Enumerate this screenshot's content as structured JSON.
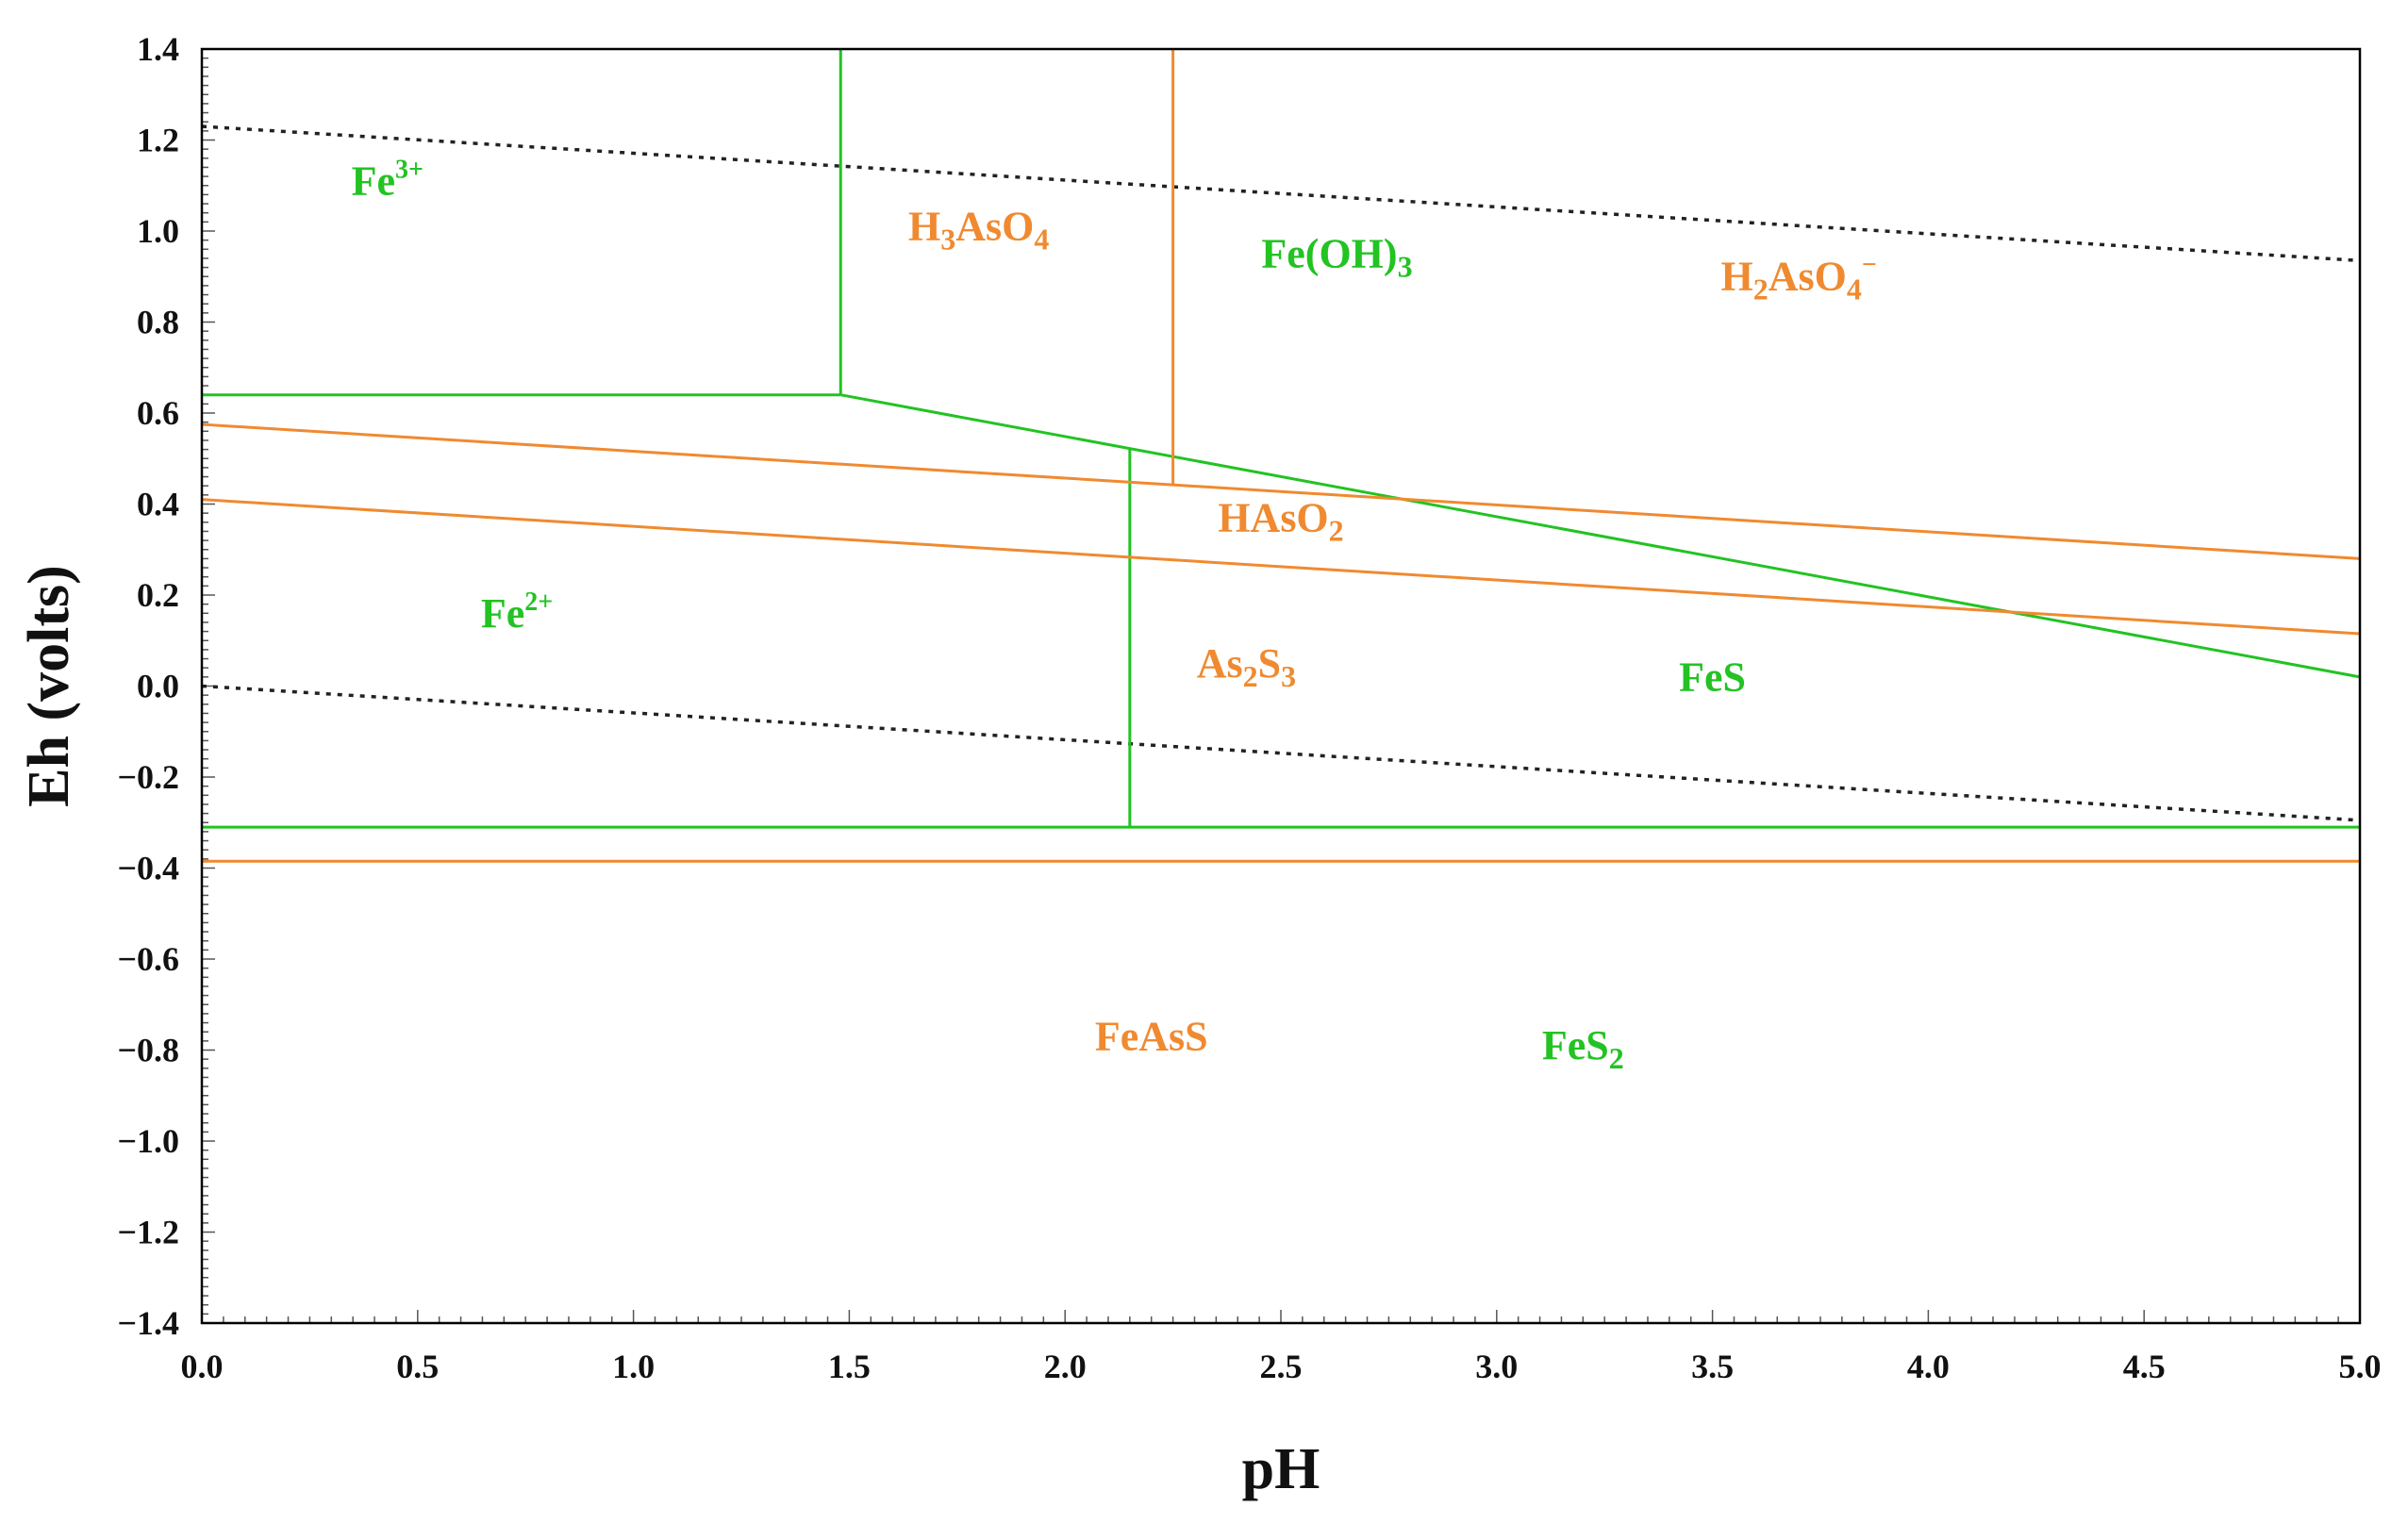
{
  "chart_data": {
    "type": "line",
    "xlabel": "pH",
    "ylabel": "Eh (volts)",
    "xlim": [
      0.0,
      5.0
    ],
    "ylim": [
      -1.4,
      1.4
    ],
    "xticks": [
      "0.0",
      "0.5",
      "1.0",
      "1.5",
      "2.0",
      "2.5",
      "3.0",
      "3.5",
      "4.0",
      "4.5",
      "5.0"
    ],
    "yticks": [
      "1.4",
      "1.2",
      "1.0",
      "0.8",
      "0.6",
      "0.4",
      "0.2",
      "0.0",
      "−0.2",
      "−0.4",
      "−0.6",
      "−0.8",
      "−1.0",
      "−1.2",
      "−1.4"
    ],
    "colors": {
      "fe": "#22c322",
      "as": "#f08a30",
      "water": "#222222",
      "frame": "#000000"
    },
    "series": [
      {
        "group": "water",
        "style": "dotted",
        "x": [
          0.0,
          5.0
        ],
        "y": [
          1.23,
          0.935
        ]
      },
      {
        "group": "water",
        "style": "dotted",
        "x": [
          0.0,
          5.0
        ],
        "y": [
          0.0,
          -0.295
        ]
      },
      {
        "group": "fe",
        "style": "solid",
        "x": [
          1.48,
          1.48
        ],
        "y": [
          1.4,
          0.64
        ]
      },
      {
        "group": "fe",
        "style": "solid",
        "x": [
          0.0,
          1.48
        ],
        "y": [
          0.64,
          0.64
        ]
      },
      {
        "group": "fe",
        "style": "solid",
        "x": [
          1.48,
          5.0
        ],
        "y": [
          0.64,
          0.02
        ]
      },
      {
        "group": "fe",
        "style": "solid",
        "x": [
          2.15,
          2.15
        ],
        "y": [
          0.52,
          -0.31
        ]
      },
      {
        "group": "fe",
        "style": "solid",
        "x": [
          0.0,
          5.0
        ],
        "y": [
          -0.31,
          -0.31
        ]
      },
      {
        "group": "as",
        "style": "solid",
        "x": [
          2.25,
          2.25
        ],
        "y": [
          1.4,
          0.44
        ]
      },
      {
        "group": "as",
        "style": "solid",
        "x": [
          0.0,
          5.0
        ],
        "y": [
          0.575,
          0.28
        ]
      },
      {
        "group": "as",
        "style": "solid",
        "x": [
          0.0,
          5.0
        ],
        "y": [
          0.41,
          0.115
        ]
      },
      {
        "group": "as",
        "style": "solid",
        "x": [
          0.0,
          5.0
        ],
        "y": [
          -0.385,
          -0.385
        ]
      }
    ],
    "annotations": [
      {
        "group": "fe",
        "x": 0.43,
        "y": 1.08,
        "parts": [
          {
            "t": "Fe"
          },
          {
            "t": "3+",
            "k": "sup"
          }
        ]
      },
      {
        "group": "as",
        "x": 1.8,
        "y": 0.98,
        "parts": [
          {
            "t": "H"
          },
          {
            "t": "3",
            "k": "sub"
          },
          {
            "t": "AsO"
          },
          {
            "t": "4",
            "k": "sub"
          }
        ]
      },
      {
        "group": "fe",
        "x": 2.63,
        "y": 0.92,
        "parts": [
          {
            "t": "Fe(OH)"
          },
          {
            "t": "3",
            "k": "sub"
          }
        ]
      },
      {
        "group": "as",
        "x": 3.7,
        "y": 0.87,
        "parts": [
          {
            "t": "H"
          },
          {
            "t": "2",
            "k": "sub"
          },
          {
            "t": "AsO"
          },
          {
            "t": "4",
            "k": "sub"
          },
          {
            "t": "−",
            "k": "sup"
          }
        ]
      },
      {
        "group": "as",
        "x": 2.5,
        "y": 0.34,
        "parts": [
          {
            "t": "HAsO"
          },
          {
            "t": "2",
            "k": "sub"
          }
        ]
      },
      {
        "group": "fe",
        "x": 0.73,
        "y": 0.13,
        "parts": [
          {
            "t": "Fe"
          },
          {
            "t": "2+",
            "k": "sup"
          }
        ]
      },
      {
        "group": "as",
        "x": 2.42,
        "y": 0.02,
        "parts": [
          {
            "t": "As"
          },
          {
            "t": "2",
            "k": "sub"
          },
          {
            "t": "S"
          },
          {
            "t": "3",
            "k": "sub"
          }
        ]
      },
      {
        "group": "fe",
        "x": 3.5,
        "y": -0.01,
        "parts": [
          {
            "t": "FeS"
          }
        ]
      },
      {
        "group": "as",
        "x": 2.2,
        "y": -0.8,
        "parts": [
          {
            "t": "FeAsS"
          }
        ]
      },
      {
        "group": "fe",
        "x": 3.2,
        "y": -0.82,
        "parts": [
          {
            "t": "FeS"
          },
          {
            "t": "2",
            "k": "sub"
          }
        ]
      }
    ]
  }
}
